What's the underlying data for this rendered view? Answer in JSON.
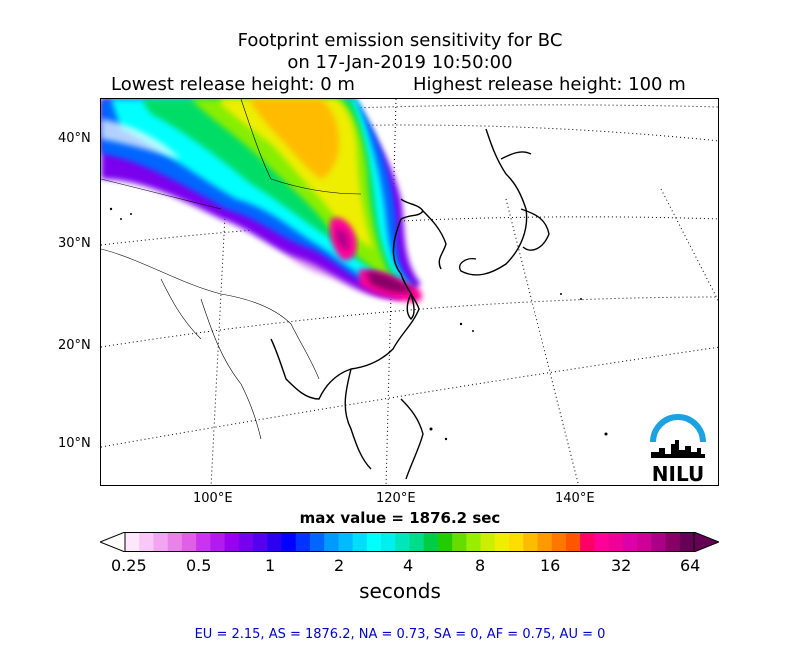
{
  "title": {
    "line1": "Footprint emission sensitivity for BC",
    "line2": "on 17-Jan-2019 10:50:00"
  },
  "heights": {
    "lowest": "Lowest release height: 0 m",
    "highest": "Highest release height: 100 m"
  },
  "axes": {
    "lat_labels": [
      "40°N",
      "30°N",
      "20°N",
      "10°N"
    ],
    "lon_labels": [
      "100°E",
      "120°E",
      "140°E"
    ]
  },
  "max_value": "max value = 1876.2 sec",
  "colorbar": {
    "ticks": [
      "0.25",
      "0.5",
      "1",
      "2",
      "4",
      "8",
      "16",
      "32",
      "64"
    ],
    "unit": "seconds",
    "colors": [
      "#fde7fd",
      "#f9c8f9",
      "#f2a6f2",
      "#ea82ea",
      "#e05ee8",
      "#cc33ee",
      "#b31aee",
      "#9900ee",
      "#7700ee",
      "#5500ee",
      "#2a00ee",
      "#0000ff",
      "#0033ff",
      "#0066ff",
      "#0099ff",
      "#00bbff",
      "#00ddff",
      "#00ffff",
      "#00eeee",
      "#00e6bb",
      "#00dd88",
      "#00cc44",
      "#22cc00",
      "#66dd00",
      "#99ee00",
      "#ccee00",
      "#eeee00",
      "#ffdd00",
      "#ffbb00",
      "#ff9900",
      "#ff7700",
      "#ff5500",
      "#ff0066",
      "#ff0099",
      "#ee0099",
      "#dd00aa",
      "#cc0099",
      "#aa0088",
      "#880066",
      "#660055"
    ]
  },
  "region_totals": "EU = 2.15,  AS = 1876.2,  NA = 0.73,  SA = 0,  AF = 0.75,  AU = 0",
  "logo": {
    "text": "NILU",
    "arc_color": "#1aa3e0"
  }
}
